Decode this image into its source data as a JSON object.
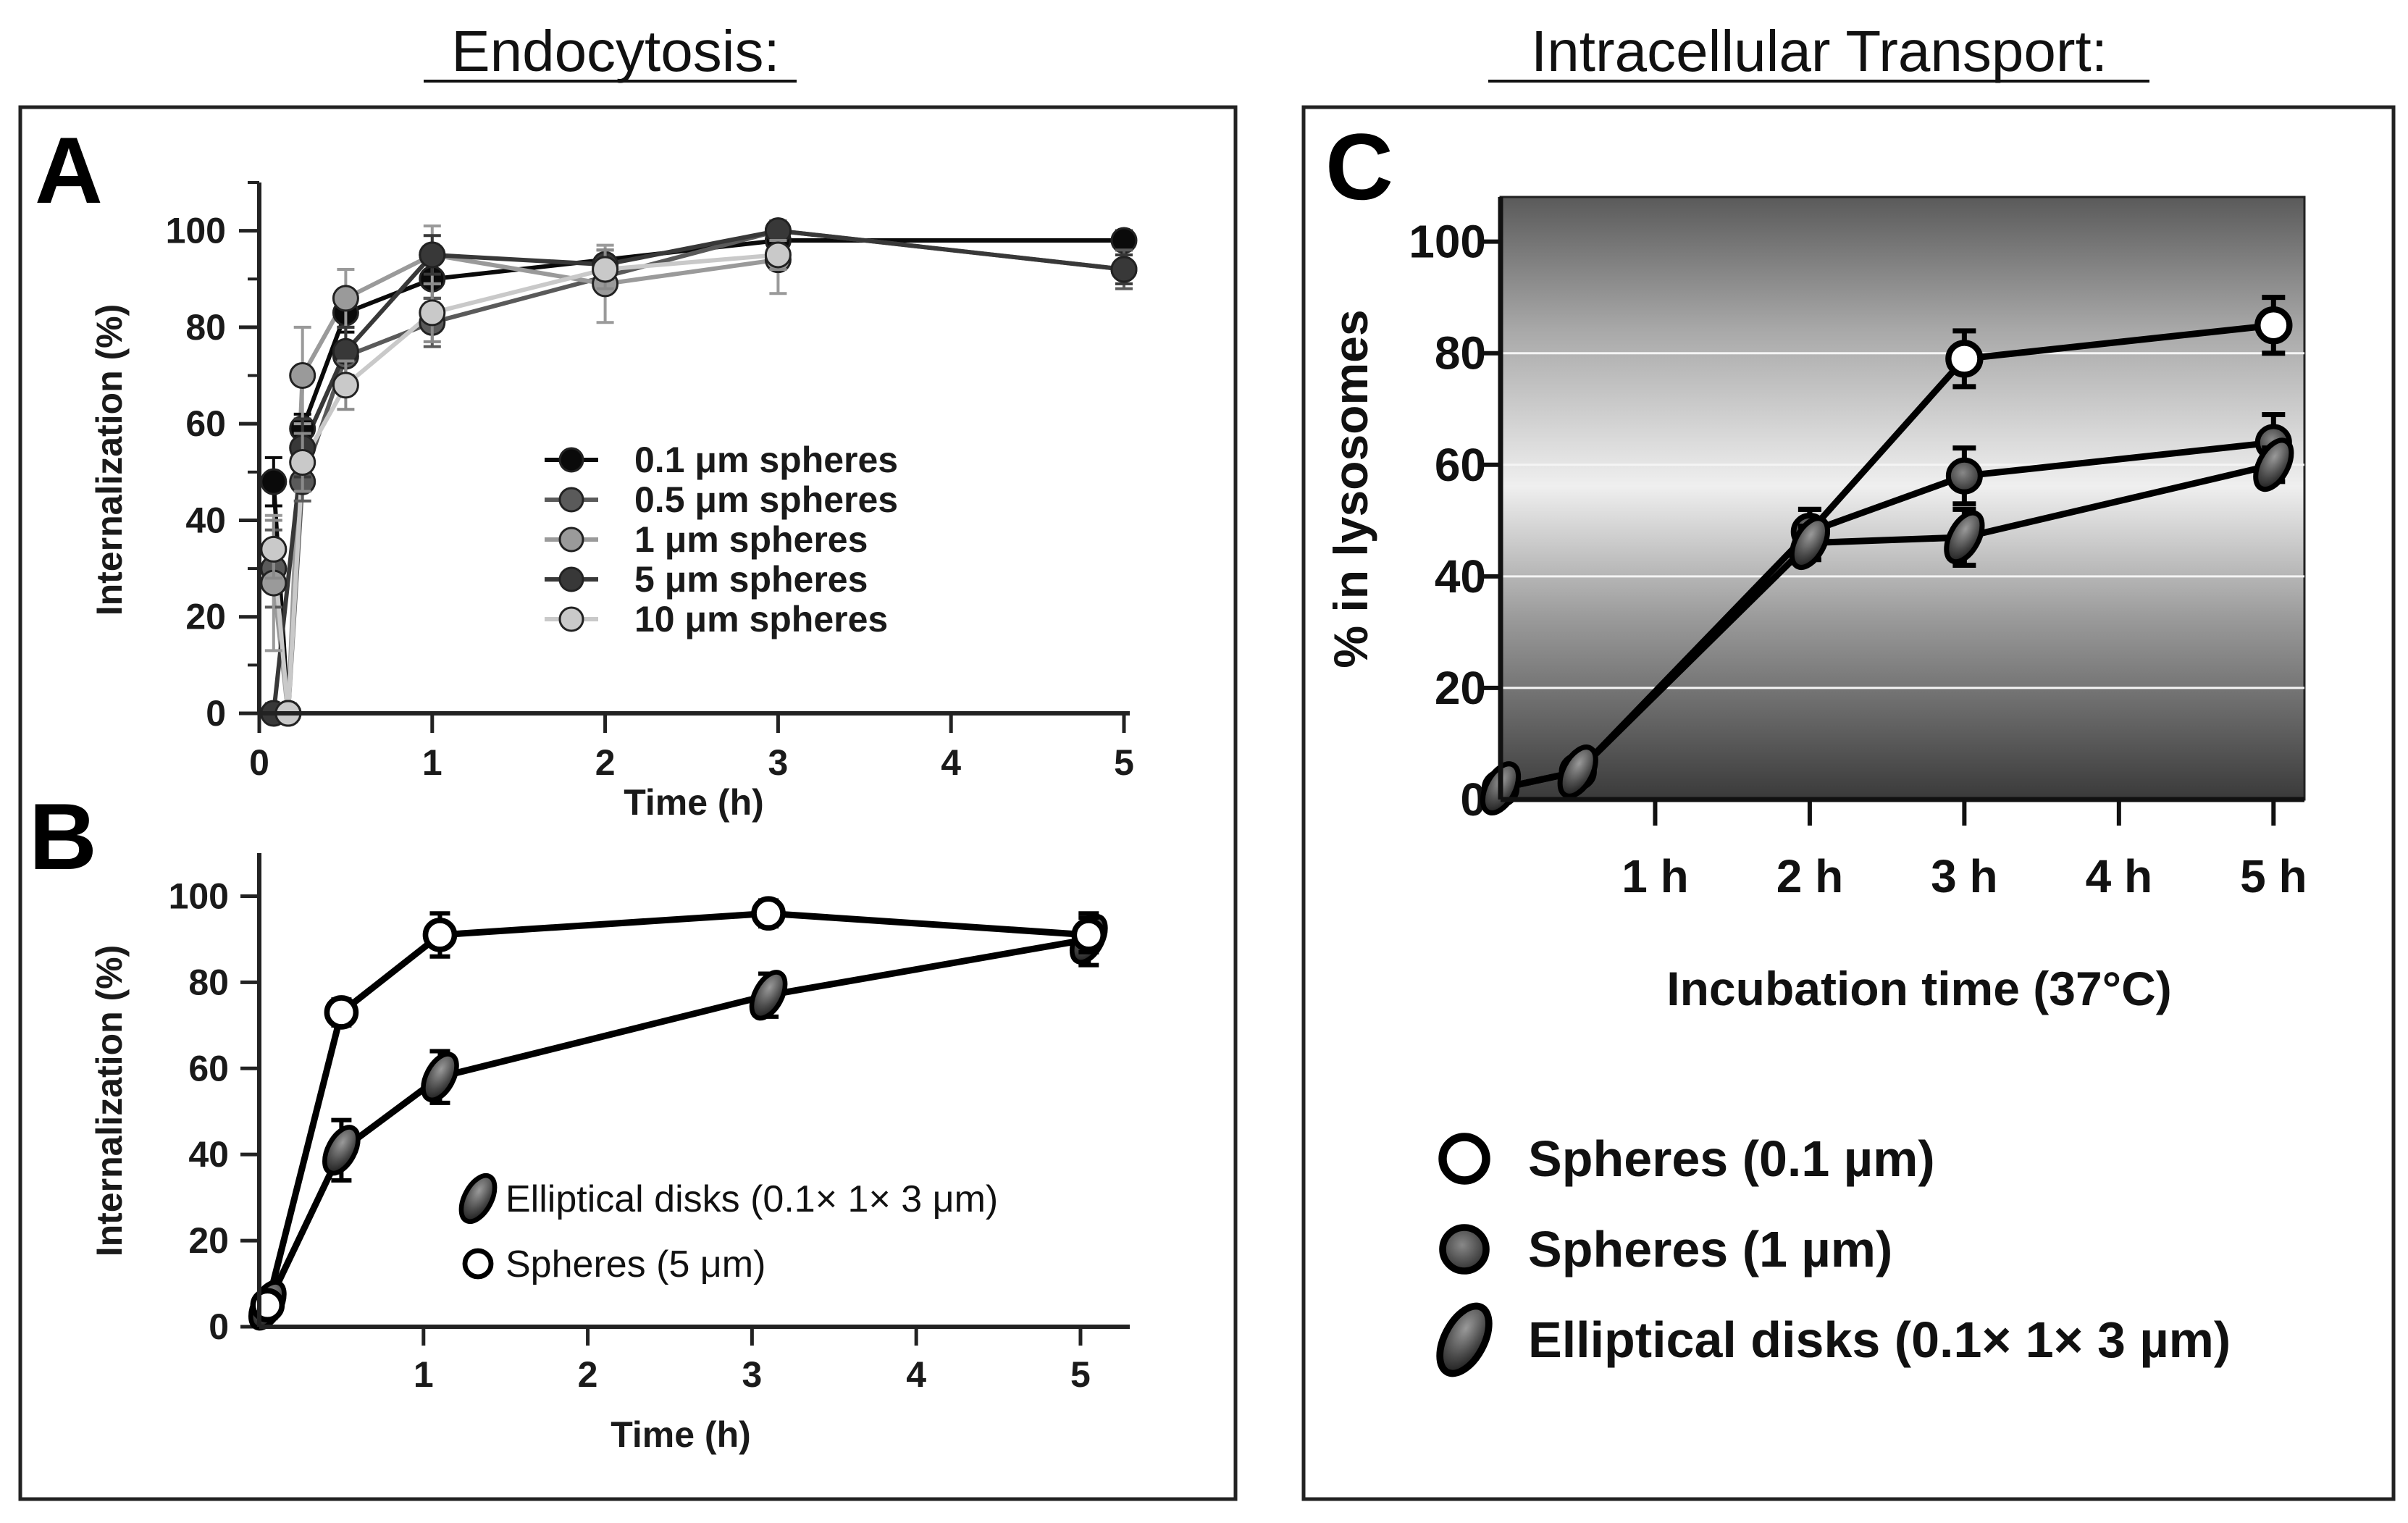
{
  "sections": {
    "left_title": "Endocytosis:",
    "right_title": "Intracellular Transport:"
  },
  "chart_data": [
    {
      "panel": "A",
      "type": "line",
      "title": "",
      "xlabel": "Time (h)",
      "ylabel": "Internalization (%)",
      "xlim": [
        0,
        5
      ],
      "ylim": [
        0,
        110
      ],
      "xticks": [
        0,
        1,
        2,
        3,
        4,
        5
      ],
      "yticks": [
        0,
        20,
        40,
        60,
        80,
        100
      ],
      "legend_position": "center-right",
      "series": [
        {
          "name": "0.1 μm spheres",
          "color": "#0a0a0a",
          "x": [
            0.083,
            0.167,
            0.25,
            0.5,
            1,
            3,
            5
          ],
          "y": [
            48,
            0,
            59,
            83,
            90,
            98,
            98
          ],
          "err": [
            5,
            2,
            3,
            4,
            4,
            2,
            2
          ]
        },
        {
          "name": "0.5 μm spheres",
          "color": "#5a5a5a",
          "x": [
            0.083,
            0.167,
            0.25,
            0.5,
            1,
            3,
            5
          ],
          "y": [
            30,
            0,
            48,
            74,
            81,
            100,
            92
          ],
          "err": [
            8,
            2,
            4,
            6,
            5,
            2,
            4
          ]
        },
        {
          "name": "1 μm spheres",
          "color": "#9a9a9a",
          "x": [
            0.083,
            0.167,
            0.25,
            0.5,
            1,
            2,
            3
          ],
          "y": [
            27,
            0,
            70,
            86,
            95,
            89,
            94
          ],
          "err": [
            14,
            2,
            10,
            6,
            6,
            8,
            7
          ]
        },
        {
          "name": "5 μm spheres",
          "color": "#383838",
          "x": [
            0.083,
            0.25,
            0.5,
            1,
            2,
            3,
            5
          ],
          "y": [
            0,
            55,
            75,
            95,
            93,
            100,
            92
          ],
          "err": [
            2,
            6,
            5,
            4,
            3,
            2,
            3
          ]
        },
        {
          "name": "10 μm spheres",
          "color": "#c9c9c9",
          "x": [
            0.083,
            0.167,
            0.25,
            0.5,
            1,
            2,
            3
          ],
          "y": [
            34,
            0,
            52,
            68,
            83,
            92,
            95
          ],
          "err": [
            6,
            2,
            6,
            5,
            6,
            4,
            3
          ]
        }
      ]
    },
    {
      "panel": "B",
      "type": "line",
      "title": "",
      "xlabel": "Time (h)",
      "ylabel": "Internalization (%)",
      "xlim": [
        0,
        5.3
      ],
      "ylim": [
        0,
        110
      ],
      "xticks": [
        1,
        2,
        3,
        4,
        5
      ],
      "yticks": [
        0,
        20,
        40,
        60,
        80,
        100
      ],
      "legend_position": "center-right",
      "series": [
        {
          "name": "Elliptical disks (0.1× 1× 3 μm)",
          "marker": "ellipse",
          "x": [
            0.05,
            0.5,
            1.1,
            3.1,
            5.05
          ],
          "y": [
            5,
            41,
            58,
            77,
            90
          ],
          "err": [
            3,
            7,
            6,
            5,
            6
          ]
        },
        {
          "name": "Spheres (5 μm)",
          "marker": "open-circle",
          "x": [
            0.05,
            0.5,
            1.1,
            3.1,
            5.05
          ],
          "y": [
            5,
            73,
            91,
            96,
            91
          ],
          "err": [
            2,
            3,
            5,
            3,
            4
          ]
        }
      ]
    },
    {
      "panel": "C",
      "type": "line",
      "title": "",
      "xlabel": "Incubation time (37°C)",
      "ylabel": "% in lysosomes",
      "xlim": [
        0,
        5.2
      ],
      "ylim": [
        0,
        108
      ],
      "xticks": [
        1,
        2,
        3,
        4,
        5
      ],
      "xtick_labels": [
        "1 h",
        "2 h",
        "3 h",
        "4 h",
        "5 h"
      ],
      "yticks": [
        0,
        20,
        40,
        60,
        80,
        100
      ],
      "grid": true,
      "legend_position": "bottom",
      "series": [
        {
          "name": "Spheres (0.1 µm)",
          "marker": "open-circle",
          "x": [
            0,
            0.5,
            2,
            3,
            5
          ],
          "y": [
            2,
            5,
            48,
            79,
            85
          ],
          "err": [
            1,
            1,
            4,
            5,
            5
          ]
        },
        {
          "name": "Spheres (1 µm)",
          "marker": "filled-circle",
          "x": [
            0,
            0.5,
            2,
            3,
            5
          ],
          "y": [
            2,
            5,
            48,
            58,
            64
          ],
          "err": [
            1,
            1,
            4,
            5,
            5
          ]
        },
        {
          "name": "Elliptical disks (0.1× 1× 3 µm)",
          "marker": "ellipse",
          "x": [
            0,
            0.5,
            2,
            3,
            5
          ],
          "y": [
            2,
            5,
            46,
            47,
            60
          ],
          "err": [
            1,
            1,
            3,
            5,
            3
          ]
        }
      ]
    }
  ]
}
